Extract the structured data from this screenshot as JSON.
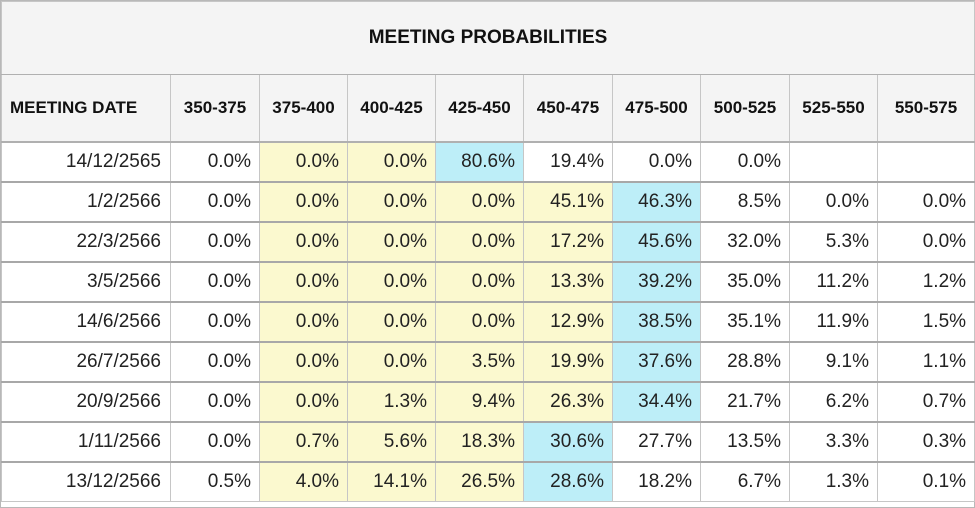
{
  "title": "MEETING PROBABILITIES",
  "columns": [
    "MEETING DATE",
    "350-375",
    "375-400",
    "400-425",
    "425-450",
    "450-475",
    "475-500",
    "500-525",
    "525-550",
    "550-575"
  ],
  "highlight_colors": {
    "y": "#fbf9cf",
    "c": "#bdeef8"
  },
  "rows": [
    {
      "date": "14/12/2565",
      "values": [
        "0.0%",
        "0.0%",
        "0.0%",
        "80.6%",
        "19.4%",
        "0.0%",
        "0.0%",
        "",
        ""
      ],
      "hl": [
        "",
        "y",
        "y",
        "c",
        "",
        "",
        "",
        "",
        ""
      ]
    },
    {
      "date": "1/2/2566",
      "values": [
        "0.0%",
        "0.0%",
        "0.0%",
        "0.0%",
        "45.1%",
        "46.3%",
        "8.5%",
        "0.0%",
        "0.0%"
      ],
      "hl": [
        "",
        "y",
        "y",
        "y",
        "y",
        "c",
        "",
        "",
        ""
      ]
    },
    {
      "date": "22/3/2566",
      "values": [
        "0.0%",
        "0.0%",
        "0.0%",
        "0.0%",
        "17.2%",
        "45.6%",
        "32.0%",
        "5.3%",
        "0.0%"
      ],
      "hl": [
        "",
        "y",
        "y",
        "y",
        "y",
        "c",
        "",
        "",
        ""
      ]
    },
    {
      "date": "3/5/2566",
      "values": [
        "0.0%",
        "0.0%",
        "0.0%",
        "0.0%",
        "13.3%",
        "39.2%",
        "35.0%",
        "11.2%",
        "1.2%"
      ],
      "hl": [
        "",
        "y",
        "y",
        "y",
        "y",
        "c",
        "",
        "",
        ""
      ]
    },
    {
      "date": "14/6/2566",
      "values": [
        "0.0%",
        "0.0%",
        "0.0%",
        "0.0%",
        "12.9%",
        "38.5%",
        "35.1%",
        "11.9%",
        "1.5%"
      ],
      "hl": [
        "",
        "y",
        "y",
        "y",
        "y",
        "c",
        "",
        "",
        ""
      ]
    },
    {
      "date": "26/7/2566",
      "values": [
        "0.0%",
        "0.0%",
        "0.0%",
        "3.5%",
        "19.9%",
        "37.6%",
        "28.8%",
        "9.1%",
        "1.1%"
      ],
      "hl": [
        "",
        "y",
        "y",
        "y",
        "y",
        "c",
        "",
        "",
        ""
      ]
    },
    {
      "date": "20/9/2566",
      "values": [
        "0.0%",
        "0.0%",
        "1.3%",
        "9.4%",
        "26.3%",
        "34.4%",
        "21.7%",
        "6.2%",
        "0.7%"
      ],
      "hl": [
        "",
        "y",
        "y",
        "y",
        "y",
        "c",
        "",
        "",
        ""
      ]
    },
    {
      "date": "1/11/2566",
      "values": [
        "0.0%",
        "0.7%",
        "5.6%",
        "18.3%",
        "30.6%",
        "27.7%",
        "13.5%",
        "3.3%",
        "0.3%"
      ],
      "hl": [
        "",
        "y",
        "y",
        "y",
        "c",
        "",
        "",
        "",
        ""
      ]
    },
    {
      "date": "13/12/2566",
      "values": [
        "0.5%",
        "4.0%",
        "14.1%",
        "26.5%",
        "28.6%",
        "18.2%",
        "6.7%",
        "1.3%",
        "0.1%"
      ],
      "hl": [
        "",
        "y",
        "y",
        "y",
        "c",
        "",
        "",
        "",
        ""
      ]
    }
  ]
}
